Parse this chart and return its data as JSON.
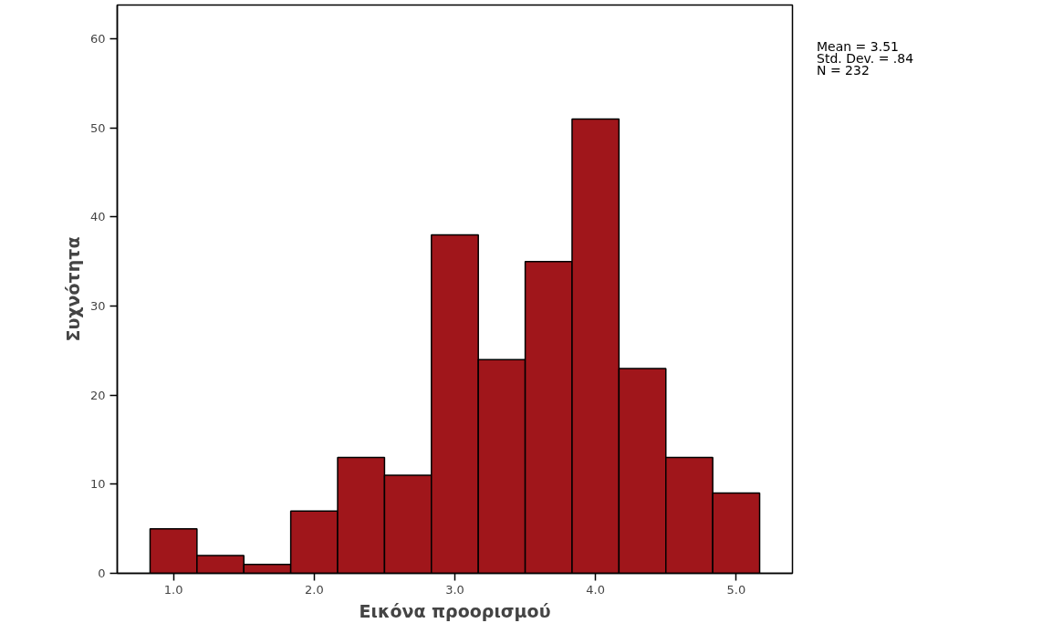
{
  "chart_data": {
    "type": "histogram",
    "xlabel": "Εικόνα προορισμού",
    "ylabel": "Συχνότητα",
    "bins": [
      0.8333,
      1.1667,
      1.5,
      1.8333,
      2.1667,
      2.5,
      2.8333,
      3.1667,
      3.5,
      3.8333,
      4.1667,
      4.5,
      4.8333,
      5.1667
    ],
    "values": [
      5,
      2,
      1,
      7,
      13,
      11,
      38,
      24,
      35,
      51,
      23,
      13,
      9
    ],
    "color": "#a0161b",
    "xlim": [
      0.6,
      5.4
    ],
    "ylim": [
      0,
      63.8
    ],
    "xticks": [
      {
        "value": 1,
        "label": "1.0"
      },
      {
        "value": 2,
        "label": "2.0"
      },
      {
        "value": 3,
        "label": "3.0"
      },
      {
        "value": 4,
        "label": "4.0"
      },
      {
        "value": 5,
        "label": "5.0"
      }
    ],
    "yticks": [
      0,
      10,
      20,
      30,
      40,
      50,
      60
    ],
    "grid": false,
    "annotations": [
      "Mean = 3.51",
      "Std. Dev. = .84",
      "N = 232"
    ]
  }
}
